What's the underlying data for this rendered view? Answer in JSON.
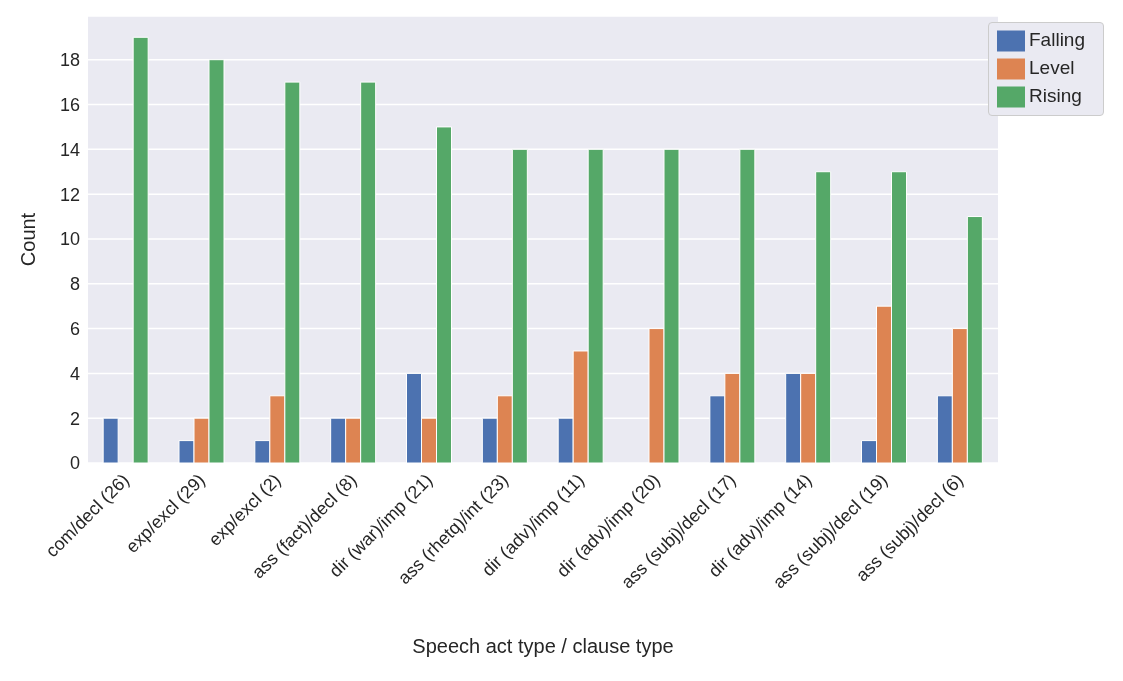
{
  "chart_data": {
    "type": "bar",
    "xlabel": "Speech act type / clause type",
    "ylabel": "Count",
    "categories": [
      "com/decl (26)",
      "exp/excl (29)",
      "exp/excl (2)",
      "ass (fact)/decl (8)",
      "dir (war)/imp (21)",
      "ass (rhetq)/int (23)",
      "dir (adv)/imp (11)",
      "dir (adv)/imp (20)",
      "ass (subj)/decl (17)",
      "dir (adv)/imp (14)",
      "ass (subj)/decl (19)",
      "ass (subj)/decl (6)"
    ],
    "series": [
      {
        "name": "Falling",
        "color": "#4c72b0",
        "values": [
          2,
          1,
          1,
          2,
          4,
          2,
          2,
          0,
          3,
          4,
          1,
          3
        ]
      },
      {
        "name": "Level",
        "color": "#dd8452",
        "values": [
          0,
          2,
          3,
          2,
          2,
          3,
          5,
          6,
          4,
          4,
          7,
          6
        ]
      },
      {
        "name": "Rising",
        "color": "#55a868",
        "values": [
          19,
          18,
          17,
          17,
          15,
          14,
          14,
          14,
          14,
          13,
          13,
          11
        ]
      }
    ],
    "ylim": [
      0,
      19.95
    ],
    "yticks": [
      0,
      2,
      4,
      6,
      8,
      10,
      12,
      14,
      16,
      18
    ],
    "grid": "y",
    "legend": "top right"
  }
}
